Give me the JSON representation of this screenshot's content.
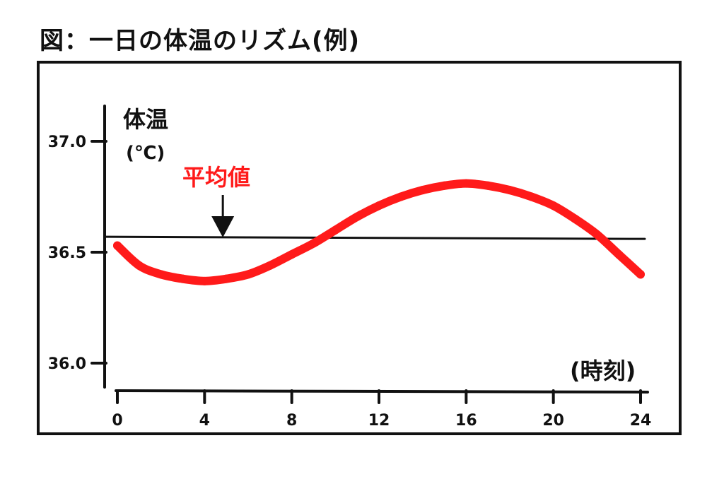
{
  "title": "図：一日の体温のリズム(例)",
  "colors": {
    "series": "#ff1a1a",
    "ink": "#111111",
    "mean_label": "#ff1a1a"
  },
  "chart_data": {
    "type": "line",
    "ylabel": "体温",
    "yunit": "(℃)",
    "xlabel": "(時刻)",
    "xlim": [
      0,
      24
    ],
    "ylim": [
      35.9,
      37.2
    ],
    "xticks": [
      0,
      4,
      8,
      12,
      16,
      20,
      24
    ],
    "yticks": [
      36.0,
      36.5,
      37.0
    ],
    "xtick_labels": [
      "0",
      "4",
      "8",
      "12",
      "16",
      "20",
      "24"
    ],
    "ytick_labels": [
      "36.0",
      "36.5",
      "37.0"
    ],
    "mean_label": "平均値",
    "mean_value": 36.56,
    "mean_arrow_x": 5,
    "grid": false,
    "series": [
      {
        "x": [
          0,
          1,
          2,
          3,
          4,
          5,
          6,
          7,
          8,
          9,
          10,
          11,
          12,
          13,
          14,
          15,
          16,
          17,
          18,
          19,
          20,
          21,
          22,
          23,
          24
        ],
        "y": [
          36.53,
          36.44,
          36.4,
          36.38,
          36.37,
          36.38,
          36.4,
          36.44,
          36.49,
          36.54,
          36.6,
          36.66,
          36.71,
          36.75,
          36.78,
          36.8,
          36.81,
          36.8,
          36.78,
          36.75,
          36.71,
          36.65,
          36.58,
          36.49,
          36.4
        ]
      }
    ]
  }
}
